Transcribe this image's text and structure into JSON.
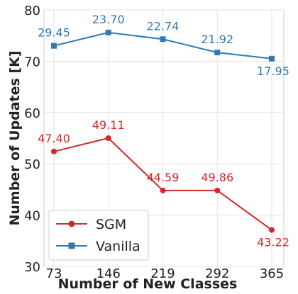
{
  "chart_data": {
    "type": "line",
    "xlabel": "Number of New Classes",
    "ylabel": "Number of Updates [K]",
    "categories": [
      "73",
      "146",
      "219",
      "292",
      "365"
    ],
    "ylim": [
      30,
      80
    ],
    "yticks": [
      30,
      40,
      50,
      60,
      70,
      80
    ],
    "grid": true,
    "legend": "bottom-left",
    "series": [
      {
        "name": "SGM",
        "color": "#d62728",
        "marker": "circle",
        "values": [
          52.4,
          55.0,
          44.8,
          44.8,
          37.1
        ],
        "labels": [
          "47.40",
          "49.11",
          "44.59",
          "49.86",
          "43.22"
        ]
      },
      {
        "name": "Vanilla",
        "color": "#2f7ab5",
        "marker": "square",
        "values": [
          73.0,
          75.6,
          74.3,
          71.7,
          70.5
        ],
        "labels": [
          "29.45",
          "23.70",
          "22.74",
          "21.92",
          "17.95"
        ]
      }
    ]
  }
}
